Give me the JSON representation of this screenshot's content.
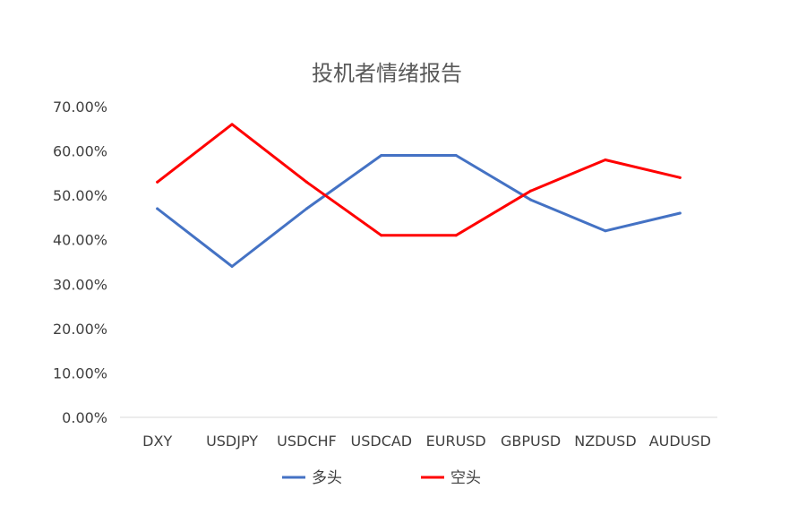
{
  "chart_data": {
    "type": "line",
    "title": "投机者情绪报告",
    "categories": [
      "DXY",
      "USDJPY",
      "USDCHF",
      "USDCAD",
      "EURUSD",
      "GBPUSD",
      "NZDUSD",
      "AUDUSD"
    ],
    "series": [
      {
        "name": "多头",
        "color": "#4472C4",
        "values": [
          47,
          34,
          47,
          59,
          59,
          49,
          42,
          46
        ]
      },
      {
        "name": "空头",
        "color": "#FF0000",
        "values": [
          53,
          66,
          53,
          41,
          41,
          51,
          58,
          54
        ]
      }
    ],
    "ylim": [
      0,
      70
    ],
    "yticks": [
      "0.00%",
      "10.00%",
      "20.00%",
      "30.00%",
      "40.00%",
      "50.00%",
      "60.00%",
      "70.00%"
    ],
    "grid": false,
    "legend_position": "bottom"
  }
}
